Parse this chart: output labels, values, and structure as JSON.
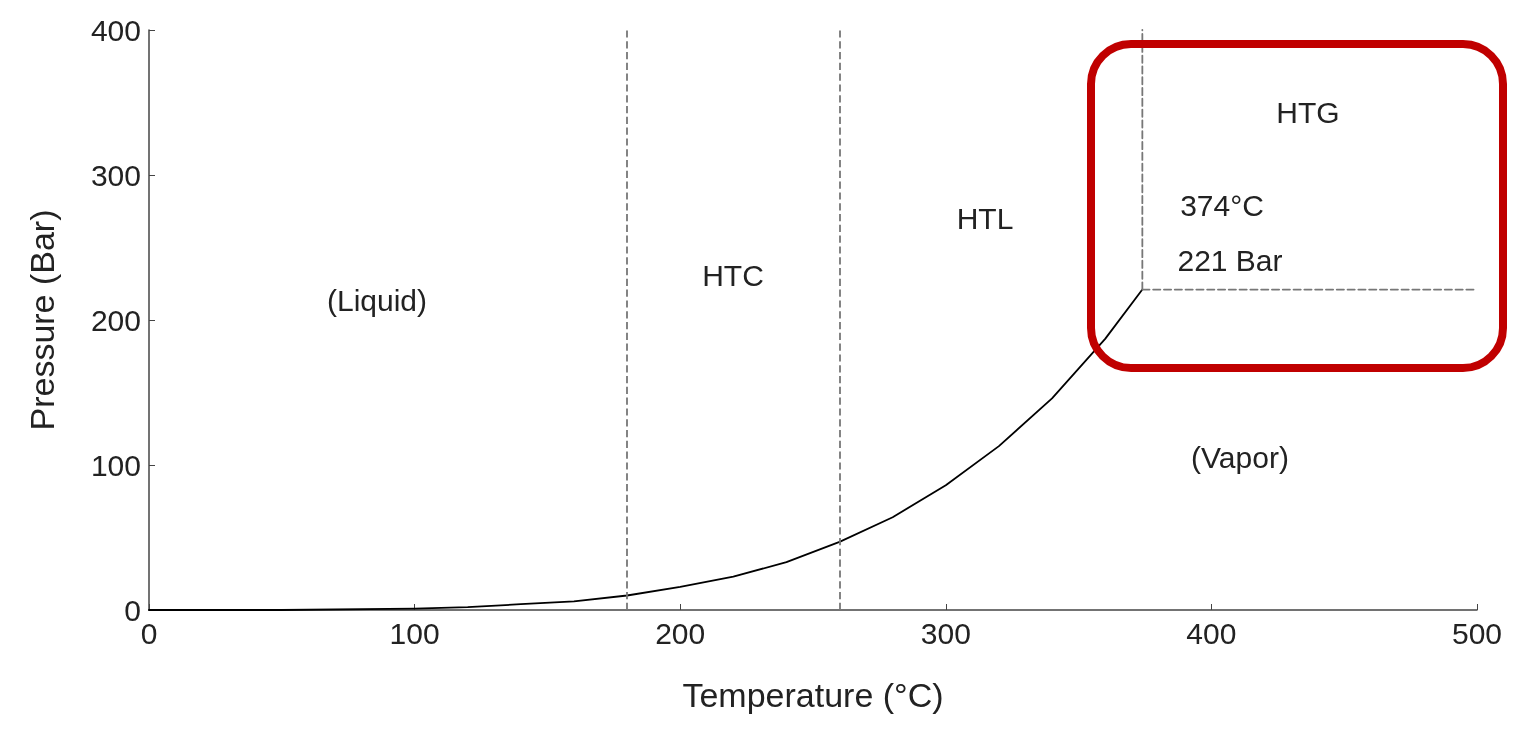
{
  "chart_data": {
    "type": "line",
    "xlabel": "Temperature (°C)",
    "ylabel": "Pressure (Bar)",
    "xlim": [
      0,
      500
    ],
    "xticks": [
      0,
      100,
      200,
      300,
      400,
      500
    ],
    "ylim": [
      0,
      400
    ],
    "yticks": [
      0,
      100,
      200,
      300,
      400
    ],
    "grid": false,
    "marker": "none",
    "series": [
      {
        "color": "#000000",
        "line_style": "solid",
        "x": [
          0,
          50,
          100,
          120,
          140,
          160,
          180,
          200,
          220,
          240,
          260,
          280,
          300,
          320,
          340,
          360,
          374
        ],
        "values": [
          0,
          0,
          1,
          2,
          4,
          6,
          10,
          16,
          23,
          33,
          47,
          64,
          86,
          113,
          146,
          187,
          221
        ]
      },
      {
        "color": "#777777",
        "line_style": "dashed",
        "x": [
          374,
          374
        ],
        "values": [
          221,
          400
        ]
      },
      {
        "color": "#777777",
        "line_style": "dashed",
        "x": [
          374,
          500
        ],
        "values": [
          221,
          221
        ]
      }
    ],
    "ref_lines": [
      {
        "axis": "x",
        "value": 180,
        "color": "#777777",
        "line_style": "dashed"
      },
      {
        "axis": "x",
        "value": 260,
        "color": "#777777",
        "line_style": "dashed"
      }
    ],
    "annotations": [
      "(Liquid)",
      "HTC",
      "HTL",
      "HTG",
      "374°C",
      "221 Bar",
      "(Vapor)"
    ]
  }
}
